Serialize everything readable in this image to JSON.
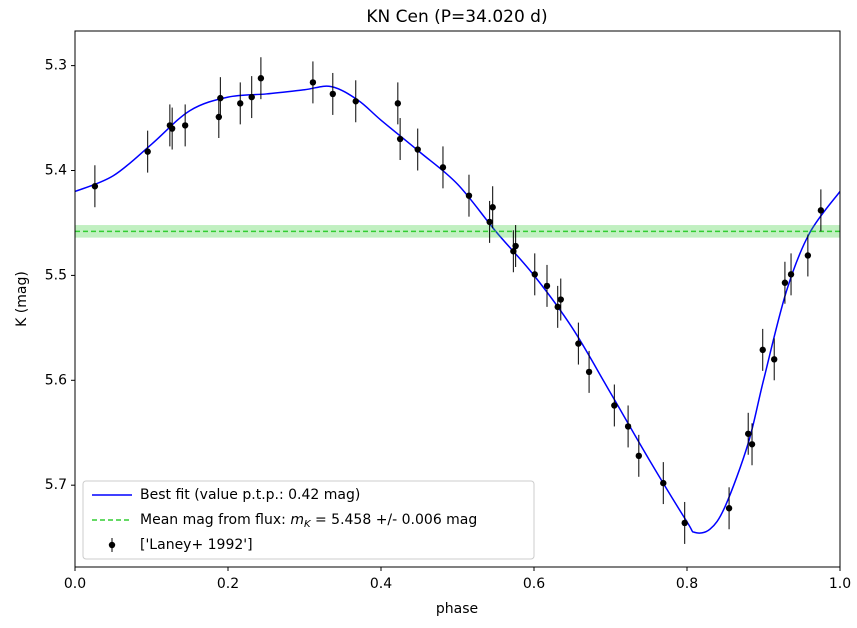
{
  "chart_data": {
    "type": "scatter",
    "title": "KN Cen  (P=34.020 d)",
    "x_label": "phase",
    "y_label": "K (mag)",
    "xlim": [
      0,
      1
    ],
    "ylim": [
      5.778,
      5.267
    ],
    "xticks": [
      {
        "value": 0,
        "label": "0.0"
      },
      0.2,
      0.4,
      0.6,
      0.8,
      {
        "value": 1,
        "label": "1.0"
      }
    ],
    "yticks": [
      5.3,
      5.4,
      5.5,
      5.6,
      5.7
    ],
    "legend": "lower left",
    "series": [
      {
        "name": "Best fit (value p.t.p.: 0.42 mag)",
        "type": "line",
        "color": "#0000ff",
        "x": [
          0,
          0.05,
          0.1,
          0.15,
          0.2,
          0.25,
          0.3,
          0.335,
          0.37,
          0.4,
          0.45,
          0.5,
          0.55,
          0.6,
          0.65,
          0.7,
          0.75,
          0.8,
          0.81,
          0.83,
          0.85,
          0.88,
          0.9,
          0.93,
          0.96,
          1.0
        ],
        "values": [
          5.42,
          5.405,
          5.375,
          5.343,
          5.33,
          5.327,
          5.323,
          5.32,
          5.333,
          5.352,
          5.382,
          5.413,
          5.458,
          5.5,
          5.55,
          5.612,
          5.675,
          5.735,
          5.745,
          5.742,
          5.72,
          5.66,
          5.6,
          5.515,
          5.46,
          5.42
        ]
      },
      {
        "name": [
          "Mean mag from flux: ",
          "m",
          "K",
          " = 5.458 +/- 0.006 mag"
        ],
        "type": "hline",
        "color": "#32cd32",
        "value": 5.458,
        "error": 0.006
      },
      {
        "name": "['Laney+ 1992']",
        "type": "errorbar",
        "color": "#000000",
        "x": [
          0.026,
          0.095,
          0.124,
          0.127,
          0.144,
          0.188,
          0.19,
          0.216,
          0.231,
          0.243,
          0.311,
          0.337,
          0.367,
          0.422,
          0.425,
          0.448,
          0.481,
          0.515,
          0.542,
          0.546,
          0.573,
          0.576,
          0.601,
          0.617,
          0.631,
          0.635,
          0.658,
          0.672,
          0.705,
          0.723,
          0.737,
          0.769,
          0.797,
          0.855,
          0.88,
          0.885,
          0.899,
          0.914,
          0.928,
          0.936,
          0.958,
          0.975
        ],
        "values": [
          5.415,
          5.382,
          5.357,
          5.36,
          5.357,
          5.349,
          5.331,
          5.336,
          5.33,
          5.312,
          5.316,
          5.327,
          5.334,
          5.336,
          5.37,
          5.38,
          5.397,
          5.424,
          5.449,
          5.435,
          5.477,
          5.472,
          5.499,
          5.51,
          5.53,
          5.523,
          5.565,
          5.592,
          5.624,
          5.644,
          5.672,
          5.698,
          5.736,
          5.722,
          5.651,
          5.661,
          5.571,
          5.58,
          5.507,
          5.499,
          5.481,
          5.438
        ],
        "errors": [
          0.02,
          0.02,
          0.02,
          0.02,
          0.02,
          0.02,
          0.02,
          0.02,
          0.02,
          0.02,
          0.02,
          0.02,
          0.02,
          0.02,
          0.02,
          0.02,
          0.02,
          0.02,
          0.02,
          0.02,
          0.02,
          0.02,
          0.02,
          0.02,
          0.02,
          0.02,
          0.02,
          0.02,
          0.02,
          0.02,
          0.02,
          0.02,
          0.02,
          0.02,
          0.02,
          0.02,
          0.02,
          0.02,
          0.02,
          0.02,
          0.02,
          0.02
        ]
      }
    ]
  }
}
